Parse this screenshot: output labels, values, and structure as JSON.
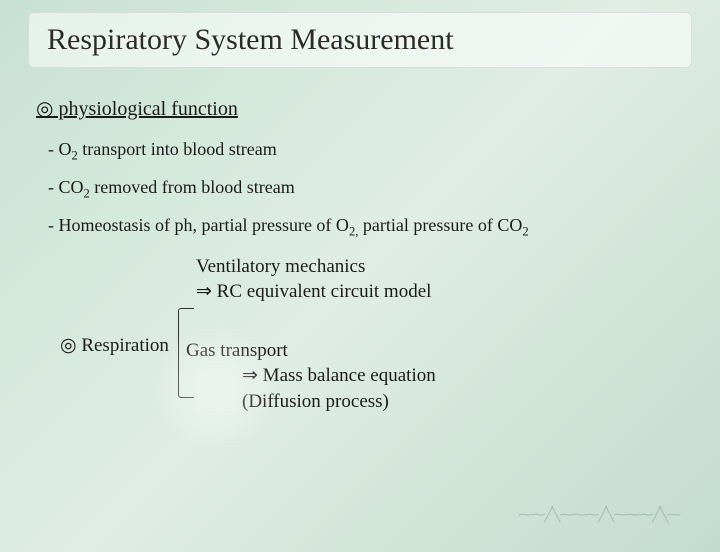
{
  "title": "Respiratory System Measurement",
  "section1": {
    "heading": "◎ physiological function",
    "items": [
      {
        "pre": "- O",
        "sub": "2",
        "post": "  transport into blood stream"
      },
      {
        "pre": "- CO",
        "sub": "2",
        "post": " removed from blood stream"
      },
      {
        "pre": "- Homeostasis of ph, partial pressure of O",
        "sub": "2,",
        "post": " partial pressure of CO",
        "sub2": "2"
      }
    ]
  },
  "respiration": {
    "label": "◎ Respiration",
    "vent": {
      "line1": "Ventilatory mechanics",
      "line2": "⇒ RC equivalent circuit model"
    },
    "gas": {
      "line1": "Gas transport",
      "line2": "⇒ Mass balance equation",
      "line3": "(Diffusion process)"
    }
  },
  "colors": {
    "text": "#1a1a1a",
    "bg_start": "#c8e0d4",
    "bg_end": "#c4dcd0"
  }
}
